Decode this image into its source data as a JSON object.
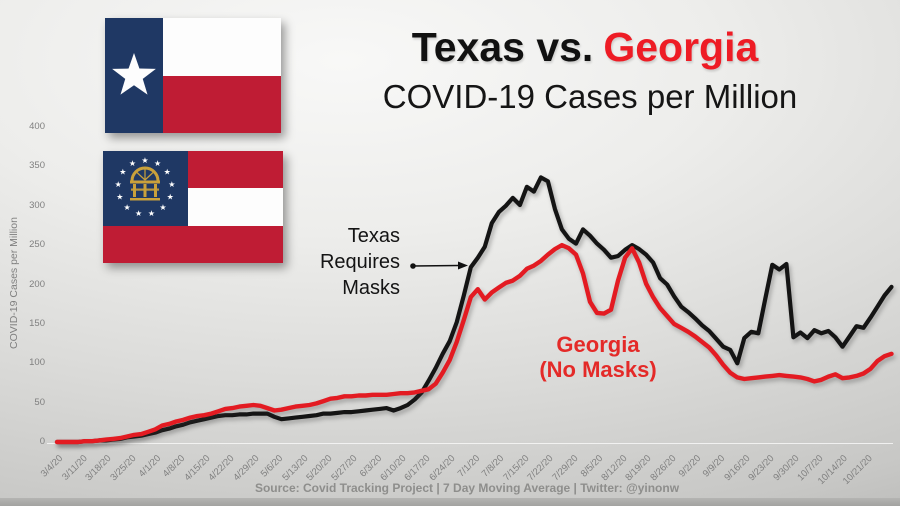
{
  "slide": {
    "title_black": "Texas vs.",
    "title_red": "Georgia",
    "subtitle": "COVID-19 Cases per Million",
    "footer": "Source: Covid Tracking Project | 7 Day Moving Average | Twitter: @yinonw"
  },
  "annotations": {
    "texas_lines": [
      "Texas",
      "Requires",
      "Masks"
    ],
    "georgia_lines": [
      "Georgia",
      "(No Masks)"
    ]
  },
  "icons": {
    "texas_flag": "texas-flag",
    "georgia_flag": "georgia-flag",
    "texas_star": "lone-star",
    "georgia_seal": "arch-and-stars-seal",
    "arrow": "right-arrow-with-dot"
  },
  "colors": {
    "title_red": "#ee1c25",
    "georgia_annotation_red": "#e42a28",
    "axis_text": "#7f7f7f",
    "flag_navy": "#1f3864",
    "flag_red": "#bf1c34",
    "flag_gold": "#c9a13b",
    "axis_line": "#fafafa"
  },
  "chart_data": {
    "type": "line",
    "title": "Texas vs. Georgia COVID-19 Cases per Million",
    "ylabel": "COVID-19 Cases per Million",
    "ylim": [
      0,
      400
    ],
    "grid": false,
    "legend_position": "none",
    "y_ticks": [
      0,
      50,
      100,
      150,
      200,
      250,
      300,
      350,
      400
    ],
    "x_tick_labels": [
      "3/4/20",
      "3/11/20",
      "3/18/20",
      "3/25/20",
      "4/1/20",
      "4/8/20",
      "4/15/20",
      "4/22/20",
      "4/29/20",
      "5/6/20",
      "5/13/20",
      "5/20/20",
      "5/27/20",
      "6/3/20",
      "6/10/20",
      "6/17/20",
      "6/24/20",
      "7/1/20",
      "7/8/20",
      "7/15/20",
      "7/22/20",
      "7/29/20",
      "8/5/20",
      "8/12/20",
      "8/19/20",
      "8/26/20",
      "9/2/20",
      "9/9/20",
      "9/16/20",
      "9/23/20",
      "9/30/20",
      "10/7/20",
      "10/14/20",
      "10/21/20"
    ],
    "x_tick_days": [
      0,
      7,
      14,
      21,
      28,
      35,
      42,
      49,
      56,
      63,
      70,
      77,
      84,
      91,
      98,
      105,
      112,
      119,
      126,
      133,
      140,
      147,
      154,
      161,
      168,
      175,
      182,
      189,
      196,
      203,
      210,
      217,
      224,
      231
    ],
    "start_date": "3/4/20",
    "sample_interval_days": 2,
    "series": [
      {
        "name": "Texas",
        "color": "#141414",
        "values": [
          0,
          0,
          0,
          0,
          1,
          1,
          2,
          2,
          3,
          4,
          6,
          7,
          8,
          10,
          12,
          15,
          17,
          20,
          22,
          25,
          27,
          29,
          31,
          33,
          34,
          34,
          35,
          35,
          36,
          36,
          36,
          32,
          29,
          30,
          31,
          32,
          33,
          34,
          36,
          36,
          37,
          38,
          38,
          39,
          40,
          41,
          42,
          43,
          40,
          43,
          47,
          54,
          63,
          78,
          94,
          112,
          128,
          152,
          186,
          222,
          234,
          248,
          278,
          292,
          300,
          310,
          301,
          324,
          318,
          336,
          331,
          296,
          270,
          258,
          252,
          270,
          262,
          252,
          244,
          234,
          236,
          244,
          250,
          245,
          238,
          228,
          208,
          200,
          185,
          172,
          165,
          157,
          148,
          141,
          131,
          121,
          117,
          100,
          132,
          140,
          138,
          182,
          225,
          219,
          226,
          133,
          139,
          132,
          142,
          138,
          141,
          133,
          121,
          134,
          147,
          145,
          158,
          172,
          186,
          197
        ]
      },
      {
        "name": "Georgia (No Masks)",
        "color": "#e31b22",
        "values": [
          0,
          0,
          0,
          0,
          1,
          1,
          2,
          3,
          4,
          5,
          7,
          9,
          10,
          13,
          16,
          21,
          23,
          26,
          28,
          31,
          33,
          34,
          36,
          39,
          42,
          43,
          45,
          46,
          47,
          46,
          43,
          40,
          41,
          43,
          45,
          46,
          47,
          49,
          52,
          55,
          56,
          58,
          58,
          59,
          59,
          60,
          60,
          60,
          61,
          62,
          62,
          63,
          65,
          67,
          74,
          88,
          104,
          127,
          155,
          184,
          194,
          181,
          190,
          196,
          202,
          205,
          211,
          220,
          224,
          230,
          238,
          245,
          250,
          246,
          238,
          214,
          178,
          164,
          163,
          168,
          205,
          234,
          246,
          228,
          201,
          184,
          170,
          160,
          150,
          145,
          140,
          134,
          127,
          120,
          110,
          98,
          88,
          82,
          80,
          81,
          82,
          83,
          84,
          85,
          84,
          83,
          82,
          80,
          77,
          79,
          83,
          86,
          81,
          82,
          84,
          87,
          93,
          103,
          109,
          112
        ]
      }
    ]
  }
}
